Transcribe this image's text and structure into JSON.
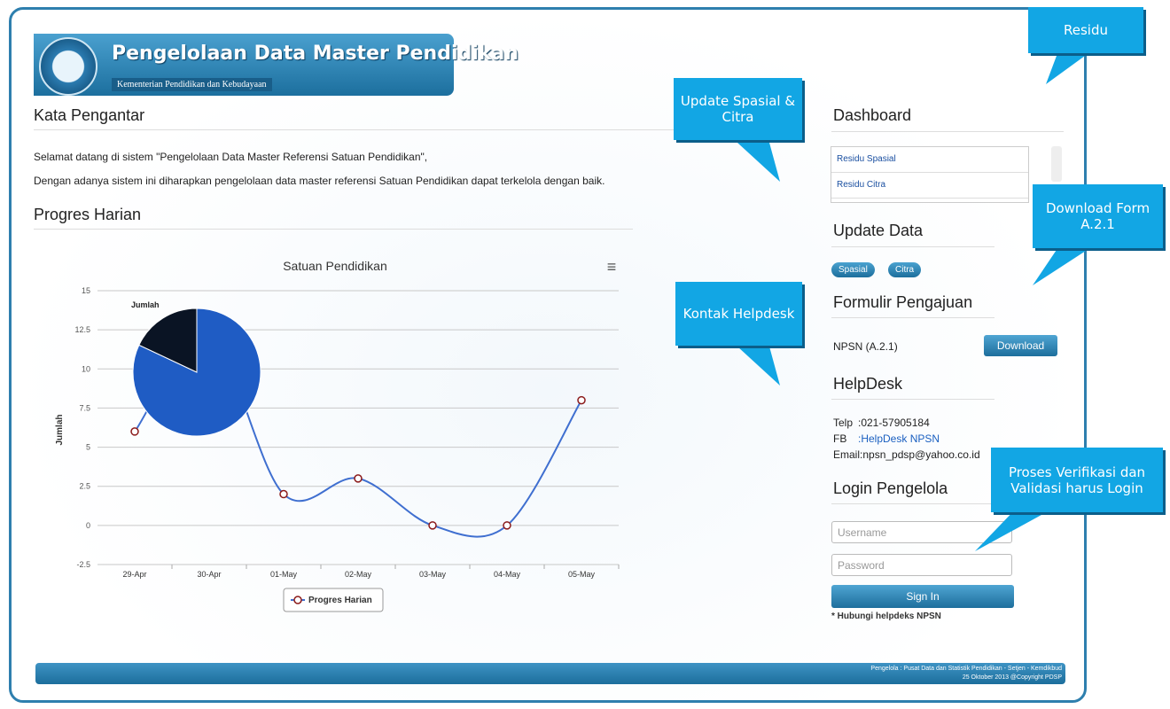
{
  "header": {
    "title": "Pengelolaan Data Master Pendidikan",
    "subtitle": "Kementerian Pendidikan dan Kebudayaan"
  },
  "intro": {
    "heading": "Kata Pengantar",
    "paragraphs": [
      "Selamat datang di sistem \"Pengelolaan Data Master Referensi Satuan Pendidikan\",",
      "Dengan adanya sistem ini diharapkan pengelolaan data master referensi Satuan Pendidikan dapat terkelola dengan baik."
    ]
  },
  "progress": {
    "heading": "Progres Harian"
  },
  "chart_data": [
    {
      "type": "line",
      "title": "Satuan Pendidikan",
      "menu": "≡",
      "y_label": "Jumlah",
      "categories": [
        "29-Apr",
        "30-Apr",
        "01-May",
        "02-May",
        "03-May",
        "04-May",
        "05-May"
      ],
      "series": [
        {
          "name": "Progres Harian",
          "color": "#3f6fd0",
          "values": [
            6,
            12,
            2,
            3,
            0,
            0,
            8
          ]
        }
      ],
      "ylim": [
        -2.5,
        15
      ],
      "yticks": [
        -2.5,
        0,
        2.5,
        5,
        7.5,
        10,
        12.5,
        15
      ],
      "grid": true,
      "legend": "bottom"
    },
    {
      "type": "pie",
      "title": "Jumlah",
      "values": [
        82,
        18
      ],
      "colors": [
        "#1f5cc4",
        "#0a1424"
      ]
    }
  ],
  "sidebar": {
    "dashboard": {
      "heading": "Dashboard",
      "items": [
        "Residu Spasial",
        "Residu Citra"
      ]
    },
    "update": {
      "heading": "Update Data",
      "buttons": [
        "Spasial",
        "Citra"
      ]
    },
    "form": {
      "heading": "Formulir Pengajuan",
      "label": "NPSN (A.2.1)",
      "button": "Download"
    },
    "helpdesk": {
      "heading": "HelpDesk",
      "rows": [
        [
          "Telp",
          ":021-57905184"
        ],
        [
          "FB",
          ":HelpDesk NPSN"
        ]
      ],
      "email": "Email:npsn_pdsp@yahoo.co.id"
    },
    "login": {
      "heading": "Login Pengelola",
      "username": "Username",
      "password": "Password",
      "button": "Sign In",
      "note": "* Hubungi helpdeks NPSN"
    }
  },
  "footer": {
    "lines": [
      "Pengelola : Pusat Data dan Statistik Pendidikan - Setjen - Kemdikbud",
      "25 Oktober 2013 @Copyright PDSP"
    ]
  },
  "callouts": [
    "Residu",
    "Update Spasial & Citra",
    "Download Form A.2.1",
    "Kontak Helpdesk",
    "Proses Verifikasi dan Validasi harus Login"
  ]
}
